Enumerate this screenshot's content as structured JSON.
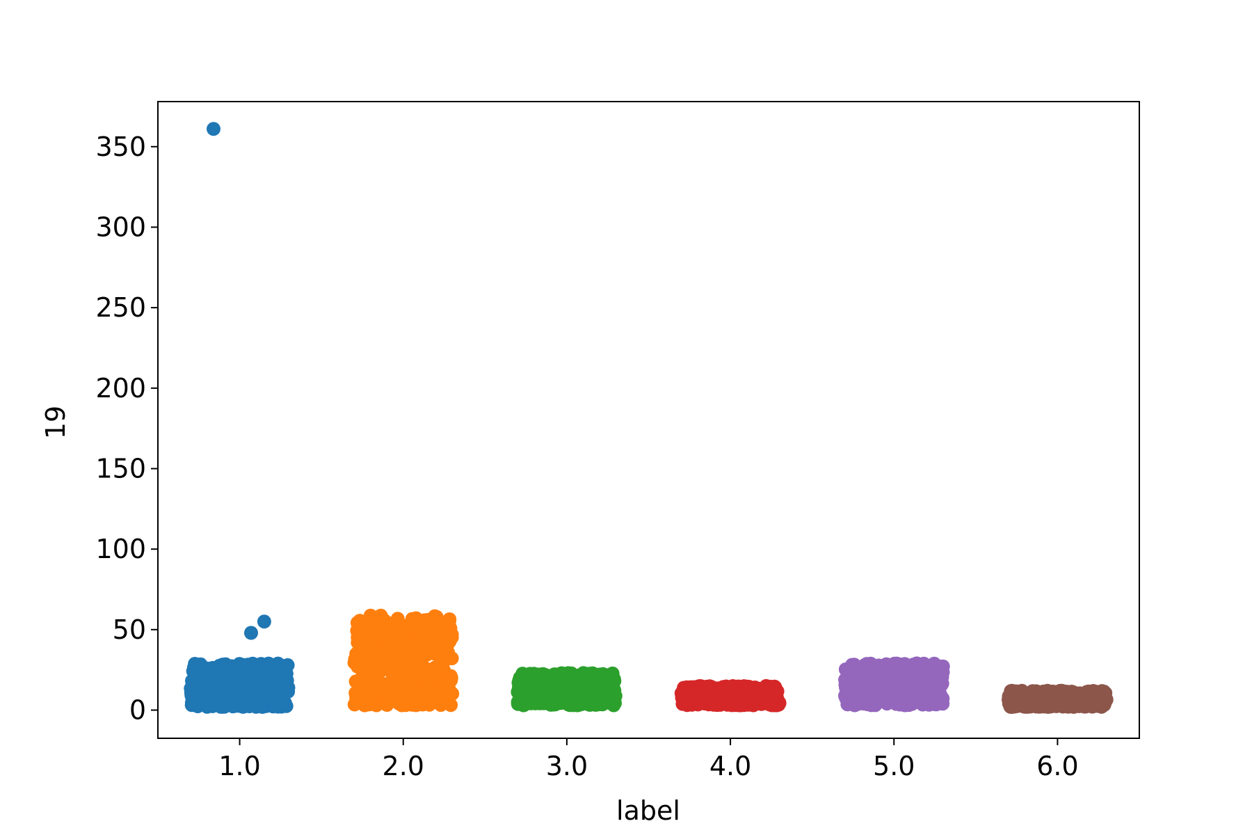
{
  "chart_data": {
    "type": "scatter",
    "style": "strip-plot-with-jitter",
    "xlabel": "label",
    "ylabel": "19",
    "ylim": [
      -17.5,
      378
    ],
    "yticks": [
      0,
      50,
      100,
      150,
      200,
      250,
      300,
      350
    ],
    "xlim": [
      -0.5,
      5.5
    ],
    "categories": [
      "1.0",
      "2.0",
      "3.0",
      "4.0",
      "5.0",
      "6.0"
    ],
    "grid": false,
    "legend": "none",
    "series": [
      {
        "category": "1.0",
        "color": "#1f77b4",
        "range": [
          2,
          29
        ],
        "outliers": [
          361,
          55,
          48
        ]
      },
      {
        "category": "2.0",
        "color": "#ff7f0e",
        "range": [
          3,
          59
        ],
        "outliers": []
      },
      {
        "category": "3.0",
        "color": "#2ca02c",
        "range": [
          3,
          23
        ],
        "outliers": []
      },
      {
        "category": "4.0",
        "color": "#d62728",
        "range": [
          3,
          15
        ],
        "outliers": []
      },
      {
        "category": "5.0",
        "color": "#9467bd",
        "range": [
          3,
          29
        ],
        "outliers": []
      },
      {
        "category": "6.0",
        "color": "#8c564b",
        "range": [
          2,
          12
        ],
        "outliers": []
      }
    ]
  }
}
